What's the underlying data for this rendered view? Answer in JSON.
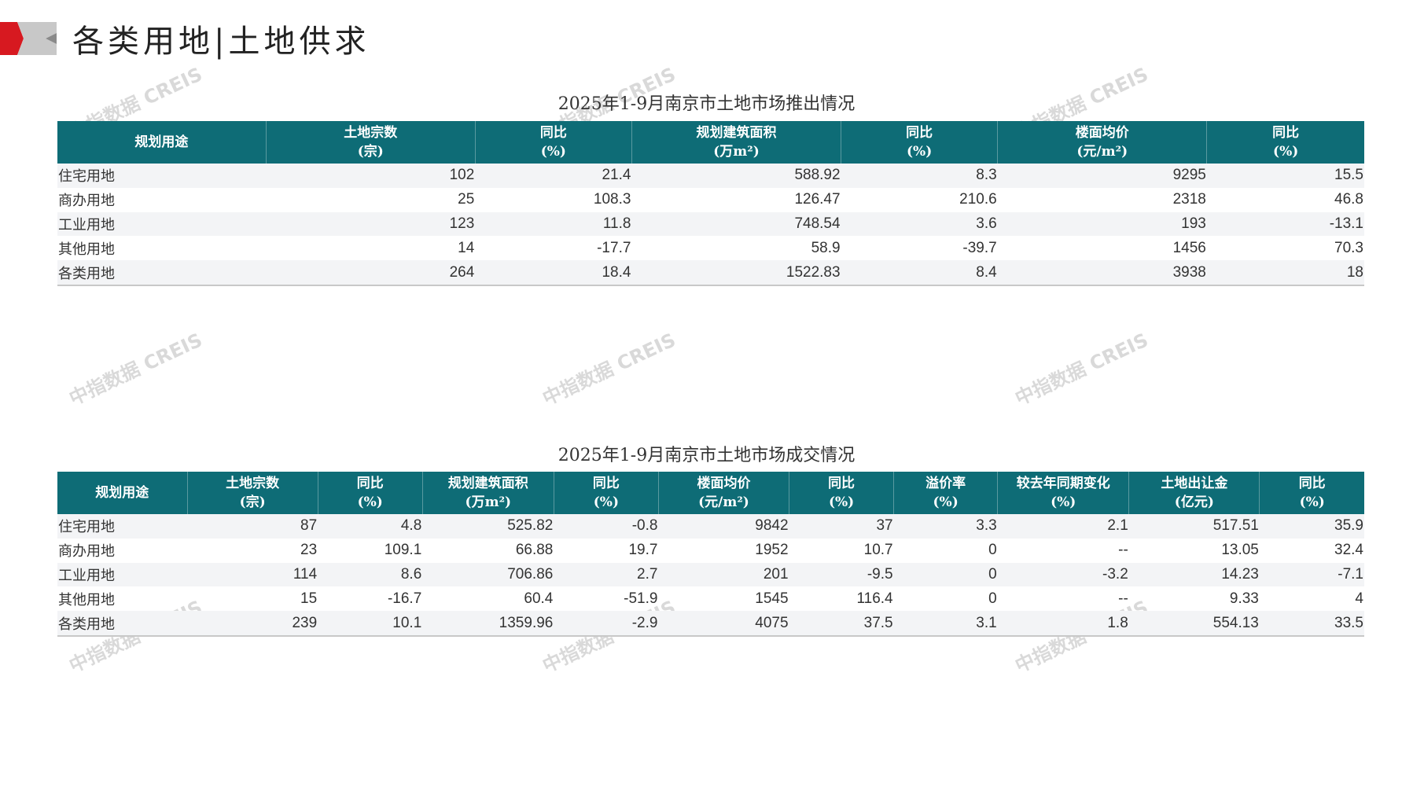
{
  "header": {
    "title": "各类用地|土地供求"
  },
  "watermark": "中指数据 CREIS",
  "colors": {
    "header_bg": "#0e6c76",
    "logo_red": "#d71920",
    "logo_gray": "#c8c8c8"
  },
  "supply": {
    "title": "2025年1-9月南京市土地市场推出情况",
    "headers": [
      [
        "规划用途",
        ""
      ],
      [
        "土地宗数",
        "(宗)"
      ],
      [
        "同比",
        "(%)"
      ],
      [
        "规划建筑面积",
        "(万m²)"
      ],
      [
        "同比",
        "(%)"
      ],
      [
        "楼面均价",
        "(元/m²)"
      ],
      [
        "同比",
        "(%)"
      ]
    ],
    "rows": [
      [
        "住宅用地",
        "102",
        "21.4",
        "588.92",
        "8.3",
        "9295",
        "15.5"
      ],
      [
        "商办用地",
        "25",
        "108.3",
        "126.47",
        "210.6",
        "2318",
        "46.8"
      ],
      [
        "工业用地",
        "123",
        "11.8",
        "748.54",
        "3.6",
        "193",
        "-13.1"
      ],
      [
        "其他用地",
        "14",
        "-17.7",
        "58.9",
        "-39.7",
        "1456",
        "70.3"
      ],
      [
        "各类用地",
        "264",
        "18.4",
        "1522.83",
        "8.4",
        "3938",
        "18"
      ]
    ]
  },
  "deals": {
    "title": "2025年1-9月南京市土地市场成交情况",
    "headers": [
      [
        "规划用途",
        ""
      ],
      [
        "土地宗数",
        "(宗)"
      ],
      [
        "同比",
        "(%)"
      ],
      [
        "规划建筑面积",
        "(万m²)"
      ],
      [
        "同比",
        "(%)"
      ],
      [
        "楼面均价",
        "(元/m²)"
      ],
      [
        "同比",
        "(%)"
      ],
      [
        "溢价率",
        "(%)"
      ],
      [
        "较去年同期变化",
        "(%)"
      ],
      [
        "土地出让金",
        "(亿元)"
      ],
      [
        "同比",
        "(%)"
      ]
    ],
    "rows": [
      [
        "住宅用地",
        "87",
        "4.8",
        "525.82",
        "-0.8",
        "9842",
        "37",
        "3.3",
        "2.1",
        "517.51",
        "35.9"
      ],
      [
        "商办用地",
        "23",
        "109.1",
        "66.88",
        "19.7",
        "1952",
        "10.7",
        "0",
        "--",
        "13.05",
        "32.4"
      ],
      [
        "工业用地",
        "114",
        "8.6",
        "706.86",
        "2.7",
        "201",
        "-9.5",
        "0",
        "-3.2",
        "14.23",
        "-7.1"
      ],
      [
        "其他用地",
        "15",
        "-16.7",
        "60.4",
        "-51.9",
        "1545",
        "116.4",
        "0",
        "--",
        "9.33",
        "4"
      ],
      [
        "各类用地",
        "239",
        "10.1",
        "1359.96",
        "-2.9",
        "4075",
        "37.5",
        "3.1",
        "1.8",
        "554.13",
        "33.5"
      ]
    ]
  }
}
